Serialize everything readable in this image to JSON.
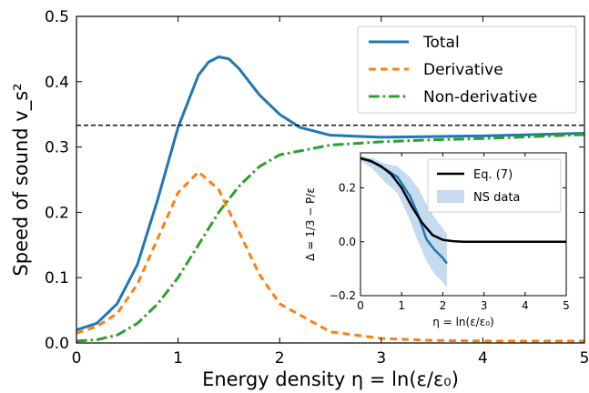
{
  "colors": {
    "total": "#1f77b4",
    "derivative": "#ff7f0e",
    "nonderivative": "#2ca02c",
    "reference": "#000000",
    "eq7": "#000000",
    "ns_band": "#c6dbef",
    "ns_line": "#1f77b4"
  },
  "chart_data": [
    {
      "type": "line",
      "xlabel": "Energy density η = ln(ε/ε₀)",
      "ylabel": "Speed of sound v_s²",
      "xlim": [
        0,
        5
      ],
      "ylim": [
        0,
        0.5
      ],
      "x_ticks": [
        "0",
        "1",
        "2",
        "3",
        "4",
        "5"
      ],
      "y_ticks": [
        "0.0",
        "0.1",
        "0.2",
        "0.3",
        "0.4",
        "0.5"
      ],
      "legend_position": "top-right",
      "reference_line": {
        "y": 0.3333,
        "style": "dashed"
      },
      "series": [
        {
          "name": "Total",
          "style": "solid",
          "x": [
            0,
            0.2,
            0.4,
            0.6,
            0.8,
            1.0,
            1.2,
            1.3,
            1.4,
            1.5,
            1.6,
            1.8,
            2.0,
            2.2,
            2.5,
            3.0,
            3.5,
            4.0,
            4.5,
            5.0
          ],
          "y": [
            0.02,
            0.03,
            0.06,
            0.12,
            0.22,
            0.33,
            0.41,
            0.43,
            0.438,
            0.435,
            0.42,
            0.38,
            0.35,
            0.33,
            0.318,
            0.315,
            0.316,
            0.317,
            0.319,
            0.321
          ]
        },
        {
          "name": "Derivative",
          "style": "dashed",
          "x": [
            0,
            0.2,
            0.4,
            0.6,
            0.8,
            1.0,
            1.2,
            1.4,
            1.6,
            1.8,
            2.0,
            2.5,
            3.0,
            3.5,
            4.0,
            5.0
          ],
          "y": [
            0.015,
            0.025,
            0.045,
            0.09,
            0.16,
            0.23,
            0.262,
            0.235,
            0.17,
            0.105,
            0.06,
            0.017,
            0.007,
            0.004,
            0.003,
            0.003
          ]
        },
        {
          "name": "Non-derivative",
          "style": "dash-dot",
          "x": [
            0,
            0.2,
            0.4,
            0.6,
            0.8,
            1.0,
            1.2,
            1.4,
            1.6,
            1.8,
            2.0,
            2.5,
            3.0,
            3.5,
            4.0,
            4.5,
            5.0
          ],
          "y": [
            0.003,
            0.005,
            0.012,
            0.03,
            0.06,
            0.1,
            0.15,
            0.2,
            0.24,
            0.27,
            0.288,
            0.303,
            0.308,
            0.311,
            0.313,
            0.316,
            0.319
          ]
        }
      ]
    },
    {
      "type": "line",
      "xlabel": "η = ln(ε/ε₀)",
      "ylabel": "Δ = 1/3 − P/ε",
      "xlim": [
        0,
        5
      ],
      "ylim": [
        -0.2,
        0.33
      ],
      "x_ticks": [
        "0",
        "1",
        "2",
        "3",
        "4",
        "5"
      ],
      "y_ticks": [
        "−0.2",
        "0.0",
        "0.2"
      ],
      "legend_position": "top-right",
      "series": [
        {
          "name": "Eq. (7)",
          "style": "solid",
          "x": [
            0,
            0.25,
            0.5,
            0.75,
            1.0,
            1.25,
            1.5,
            1.75,
            2.0,
            2.25,
            2.5,
            3.0,
            4.0,
            5.0
          ],
          "y": [
            0.31,
            0.3,
            0.28,
            0.25,
            0.2,
            0.13,
            0.07,
            0.025,
            0.007,
            0.002,
            0.0,
            0.0,
            0.0,
            0.0
          ]
        },
        {
          "name": "NS data",
          "style": "band+line",
          "x": [
            0,
            0.3,
            0.6,
            0.9,
            1.2,
            1.4,
            1.6,
            1.8,
            2.0,
            2.1
          ],
          "y": [
            0.31,
            0.295,
            0.27,
            0.24,
            0.17,
            0.1,
            0.01,
            -0.03,
            -0.06,
            -0.08
          ],
          "y_low": [
            0.3,
            0.27,
            0.22,
            0.18,
            0.08,
            0.0,
            -0.07,
            -0.12,
            -0.15,
            -0.17
          ],
          "y_high": [
            0.32,
            0.31,
            0.29,
            0.28,
            0.24,
            0.2,
            0.14,
            0.09,
            0.05,
            0.03
          ]
        }
      ]
    }
  ]
}
